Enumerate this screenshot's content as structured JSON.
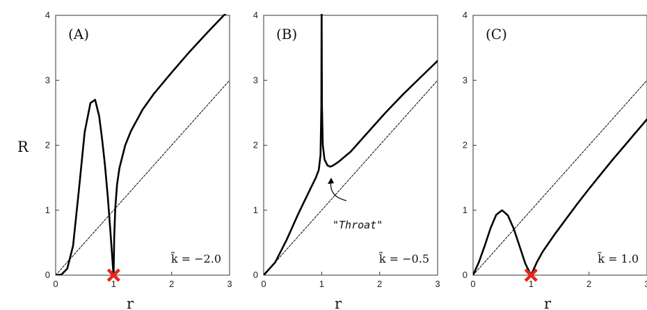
{
  "figure": {
    "ylabel": "R",
    "xlabel": "r"
  },
  "chart_data": [
    {
      "type": "line",
      "panel_label": "(A)",
      "k_label": "k̃ = −2.0",
      "xlim": [
        0,
        3
      ],
      "ylim": [
        0,
        4
      ],
      "xticks": [
        "0",
        "1",
        "2",
        "3"
      ],
      "yticks": [
        "0",
        "1",
        "2",
        "3",
        "4"
      ],
      "marker": {
        "shape": "x",
        "color": "#e8251b",
        "x": 1,
        "y": 0
      },
      "series": [
        {
          "style": "solid",
          "x": [
            0,
            0.1,
            0.2,
            0.3,
            0.4,
            0.5,
            0.6,
            0.68,
            0.75,
            0.8,
            0.85,
            0.9,
            0.95,
            0.99,
            1.0
          ],
          "y": [
            0,
            0.01,
            0.1,
            0.45,
            1.3,
            2.2,
            2.65,
            2.7,
            2.45,
            2.1,
            1.7,
            1.2,
            0.6,
            0.1,
            0
          ]
        },
        {
          "style": "solid",
          "x": [
            1.0,
            1.01,
            1.03,
            1.06,
            1.1,
            1.2,
            1.3,
            1.5,
            1.7,
            2.0,
            2.3,
            2.6,
            2.9,
            3.0
          ],
          "y": [
            0.0,
            0.6,
            1.05,
            1.4,
            1.65,
            2.0,
            2.22,
            2.55,
            2.8,
            3.12,
            3.43,
            3.72,
            4.0,
            4.08
          ]
        },
        {
          "style": "dashed",
          "x": [
            0,
            3
          ],
          "y": [
            0,
            3
          ]
        }
      ]
    },
    {
      "type": "line",
      "panel_label": "(B)",
      "k_label": "k̃ = −0.5",
      "xlim": [
        0,
        3
      ],
      "ylim": [
        0,
        4
      ],
      "xticks": [
        "0",
        "1",
        "2",
        "3"
      ],
      "yticks": [
        "0",
        "1",
        "2",
        "3",
        "4"
      ],
      "annotation": {
        "text": "\"Throat\"",
        "x": 1.15,
        "y": 1.67
      },
      "series": [
        {
          "style": "solid",
          "x": [
            0,
            0.2,
            0.4,
            0.6,
            0.8,
            0.9,
            0.95,
            0.98,
            0.995,
            1.0
          ],
          "y": [
            0,
            0.2,
            0.55,
            0.95,
            1.32,
            1.5,
            1.62,
            1.85,
            2.6,
            4.2
          ]
        },
        {
          "style": "solid",
          "x": [
            1.0,
            1.005,
            1.02,
            1.05,
            1.1,
            1.15,
            1.2,
            1.3,
            1.5,
            1.8,
            2.1,
            2.4,
            2.7,
            3.0
          ],
          "y": [
            4.2,
            2.6,
            2.0,
            1.78,
            1.69,
            1.67,
            1.69,
            1.75,
            1.9,
            2.2,
            2.5,
            2.78,
            3.04,
            3.3
          ]
        },
        {
          "style": "dashed",
          "x": [
            0,
            3
          ],
          "y": [
            0,
            3
          ]
        }
      ]
    },
    {
      "type": "line",
      "panel_label": "(C)",
      "k_label": "k̃ = 1.0",
      "xlim": [
        0,
        3
      ],
      "ylim": [
        0,
        4
      ],
      "xticks": [
        "0",
        "1",
        "2",
        "3"
      ],
      "yticks": [
        "0",
        "1",
        "2",
        "3",
        "4"
      ],
      "marker": {
        "shape": "x",
        "color": "#e8251b",
        "x": 1,
        "y": 0
      },
      "series": [
        {
          "style": "solid",
          "x": [
            0,
            0.1,
            0.2,
            0.3,
            0.4,
            0.5,
            0.6,
            0.7,
            0.8,
            0.9,
            1.0,
            1.05,
            1.1,
            1.2,
            1.4,
            1.6,
            1.8,
            2.0,
            2.2,
            2.4,
            2.6,
            2.8,
            3.0
          ],
          "y": [
            0,
            0.2,
            0.45,
            0.72,
            0.93,
            1.0,
            0.92,
            0.72,
            0.45,
            0.18,
            0.0,
            0.1,
            0.2,
            0.36,
            0.62,
            0.86,
            1.1,
            1.33,
            1.55,
            1.77,
            1.98,
            2.19,
            2.4
          ]
        },
        {
          "style": "dashed",
          "x": [
            0,
            3
          ],
          "y": [
            0,
            3
          ]
        }
      ]
    }
  ]
}
